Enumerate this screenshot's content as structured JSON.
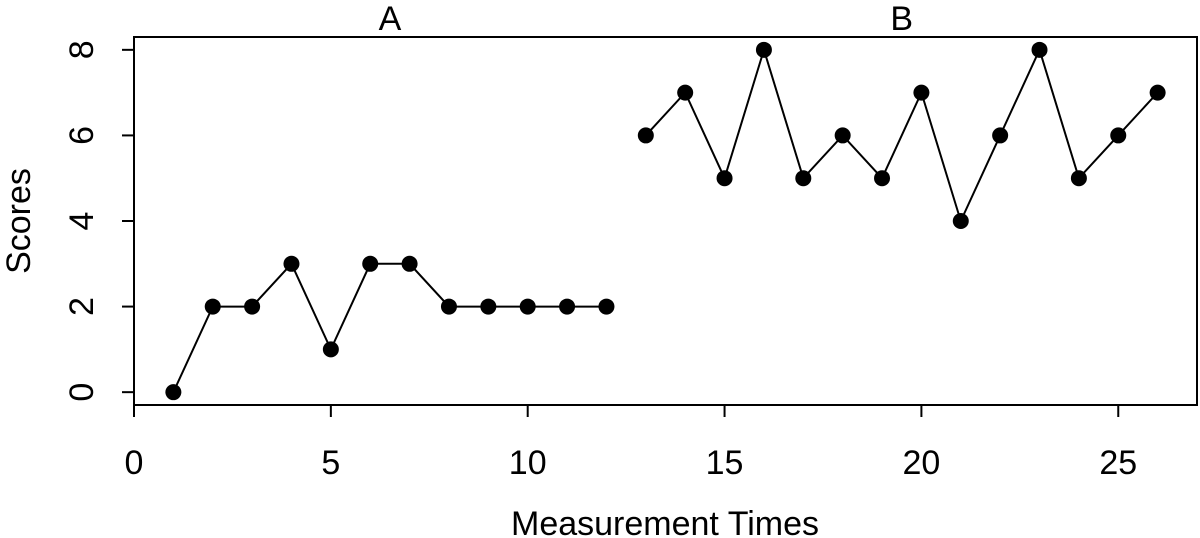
{
  "chart_data": {
    "type": "line",
    "title": "",
    "xlabel": "Measurement Times",
    "ylabel": "Scores",
    "xlim": [
      0,
      27
    ],
    "ylim": [
      -0.3,
      8.3
    ],
    "x_ticks": [
      0,
      5,
      10,
      15,
      20,
      25
    ],
    "y_ticks": [
      0,
      2,
      4,
      6,
      8
    ],
    "grid": false,
    "legend": "none",
    "colors": {
      "line": "#000000",
      "point": "#000000",
      "axis": "#000000"
    },
    "phases": [
      {
        "label": "A",
        "label_x": 6.5,
        "x": [
          1,
          2,
          3,
          4,
          5,
          6,
          7,
          8,
          9,
          10,
          11,
          12
        ],
        "values": [
          0,
          2,
          2,
          3,
          1,
          3,
          3,
          2,
          2,
          2,
          2,
          2
        ]
      },
      {
        "label": "B",
        "label_x": 19.5,
        "x": [
          13,
          14,
          15,
          16,
          17,
          18,
          19,
          20,
          21,
          22,
          23,
          24,
          25,
          26
        ],
        "values": [
          6,
          7,
          5,
          8,
          5,
          6,
          5,
          7,
          4,
          6,
          8,
          5,
          6,
          7
        ]
      }
    ]
  }
}
